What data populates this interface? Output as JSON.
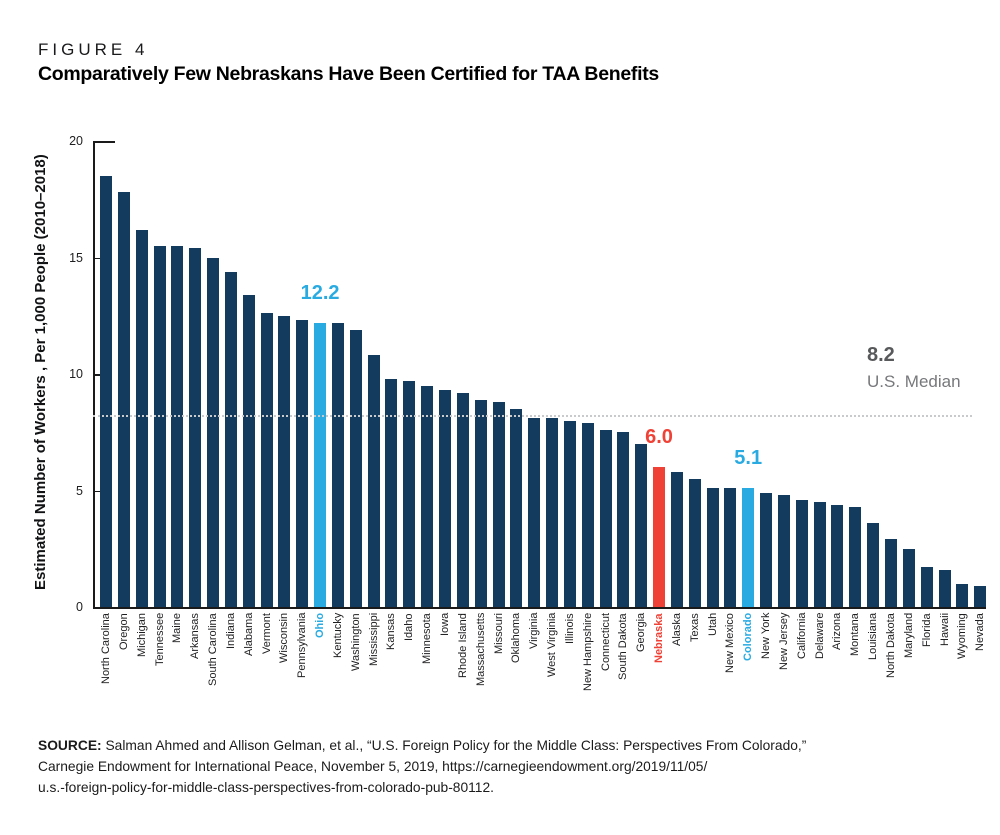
{
  "figure_label": "FIGURE 4",
  "title": "Comparatively Few Nebraskans Have Been Certified for TAA Benefits",
  "chart_data": {
    "type": "bar",
    "title": "Comparatively Few Nebraskans Have Been Certified for TAA Benefits",
    "ylabel": "Estimated Number of Workers , Per 1,000 People (2010–2018)",
    "xlabel": "",
    "ylim": [
      0,
      20
    ],
    "yticks": [
      0,
      5,
      10,
      15,
      20
    ],
    "grid": false,
    "legend_position": "none",
    "categories": [
      "North Carolina",
      "Oregon",
      "Michigan",
      "Tennessee",
      "Maine",
      "Arkansas",
      "South Carolina",
      "Indiana",
      "Alabama",
      "Vermont",
      "Wisconsin",
      "Pennsylvania",
      "Ohio",
      "Kentucky",
      "Washington",
      "Mississippi",
      "Kansas",
      "Idaho",
      "Minnesota",
      "Iowa",
      "Rhode Island",
      "Massachusetts",
      "Missouri",
      "Oklahoma",
      "Virginia",
      "West Virginia",
      "Illinois",
      "New Hampshire",
      "Connecticut",
      "South Dakota",
      "Georgia",
      "Nebraska",
      "Alaska",
      "Texas",
      "Utah",
      "New Mexico",
      "Colorado",
      "New York",
      "New Jersey",
      "California",
      "Delaware",
      "Arizona",
      "Montana",
      "Louisiana",
      "North Dakota",
      "Maryland",
      "Florida",
      "Hawaii",
      "Wyoming",
      "Nevada"
    ],
    "values": [
      18.5,
      17.8,
      16.2,
      15.5,
      15.5,
      15.4,
      15.0,
      14.4,
      13.4,
      12.6,
      12.5,
      12.3,
      12.2,
      12.2,
      11.9,
      10.8,
      9.8,
      9.7,
      9.5,
      9.3,
      9.2,
      8.9,
      8.8,
      8.5,
      8.1,
      8.1,
      8.0,
      7.9,
      7.6,
      7.5,
      7.0,
      6.0,
      5.8,
      5.5,
      5.1,
      5.1,
      5.1,
      4.9,
      4.8,
      4.6,
      4.5,
      4.4,
      4.3,
      3.6,
      2.9,
      2.5,
      1.7,
      1.6,
      1.0,
      0.9
    ],
    "bar_color": "#123B5E",
    "highlights": [
      {
        "category": "Ohio",
        "value": 12.2,
        "value_label": "12.2",
        "color": "#29ABE2"
      },
      {
        "category": "Nebraska",
        "value": 6.0,
        "value_label": "6.0",
        "color": "#EF4136"
      },
      {
        "category": "Colorado",
        "value": 5.1,
        "value_label": "5.1",
        "color": "#29ABE2"
      }
    ],
    "median_line": {
      "value": 8.2,
      "label_value": "8.2",
      "label_text": "U.S. Median",
      "line_style": "dotted",
      "line_color": "#c9cacc",
      "value_color": "#58595b",
      "text_color": "#77787b"
    }
  },
  "source": {
    "label": "SOURCE:",
    "text": "Salman Ahmed and Allison Gelman, et al., “U.S. Foreign Policy for the Middle Class: Perspectives From Colorado,”\nCarnegie Endowment for International Peace, November 5, 2019, https://carnegieendowment.org/2019/11/05/\nu.s.-foreign-policy-for-middle-class-perspectives-from-colorado-pub-80112."
  },
  "colors": {
    "bar_navy": "#123B5E",
    "highlight_cyan": "#29ABE2",
    "highlight_red": "#EF4136",
    "axis": "#1a1a1a",
    "median_dotted": "#c9cacc"
  }
}
